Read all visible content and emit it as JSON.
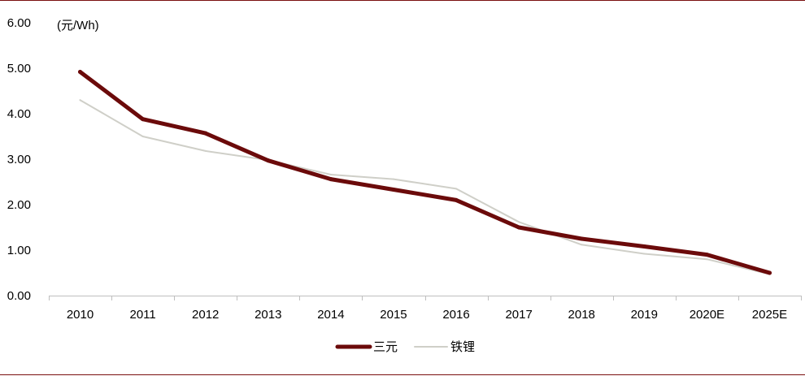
{
  "chart_data": {
    "type": "line",
    "categories": [
      "2010",
      "2011",
      "2012",
      "2013",
      "2014",
      "2015",
      "2016",
      "2017",
      "2018",
      "2019",
      "2020E",
      "2025E"
    ],
    "ylabel": "(元/Wh)",
    "ylim": [
      0,
      6
    ],
    "yticks": [
      "0.00",
      "1.00",
      "2.00",
      "3.00",
      "4.00",
      "5.00",
      "6.00"
    ],
    "grid": false,
    "legend_position": "bottom-center",
    "series": [
      {
        "name": "三元",
        "color": "#6b0a0a",
        "values": [
          4.92,
          3.88,
          3.57,
          2.97,
          2.56,
          2.33,
          2.1,
          1.5,
          1.25,
          1.08,
          0.9,
          0.5
        ]
      },
      {
        "name": "铁锂",
        "color": "#cfcfc8",
        "values": [
          4.3,
          3.5,
          3.18,
          2.98,
          2.66,
          2.56,
          2.35,
          1.62,
          1.12,
          0.92,
          0.8,
          0.47
        ]
      }
    ]
  }
}
